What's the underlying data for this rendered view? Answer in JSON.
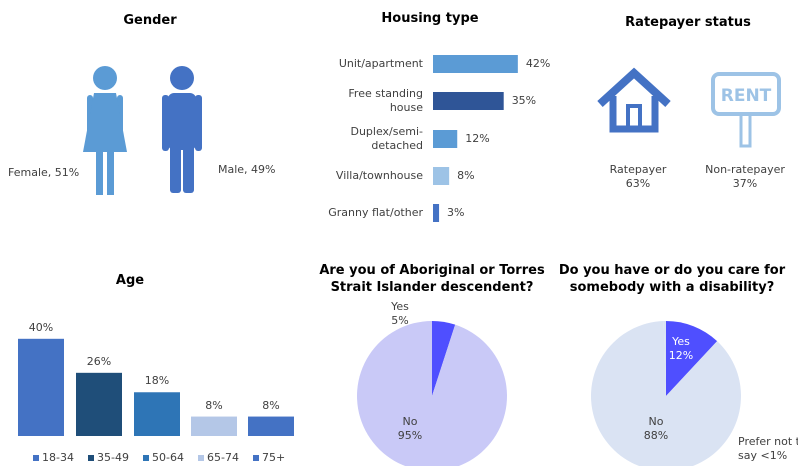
{
  "chart_data": [
    {
      "type": "pictogram",
      "title": "Gender",
      "values": [
        51,
        49
      ],
      "value_labels": [
        "Female, 51%",
        "Male, 49%"
      ],
      "colors": [
        "#5b9bd5",
        "#4472c4"
      ]
    },
    {
      "type": "bar",
      "orientation": "horizontal",
      "title": "Housing type",
      "categories": [
        "Unit/apartment",
        "Free standing house",
        "Duplex/semi-detached",
        "Villa/townhouse",
        "Granny flat/other"
      ],
      "values": [
        42,
        35,
        12,
        8,
        3
      ],
      "value_labels": [
        "42%",
        "35%",
        "12%",
        "8%",
        "3%"
      ],
      "colors": [
        "#5b9bd5",
        "#2f5597",
        "#5b9bd5",
        "#9dc3e6",
        "#4472c4"
      ]
    },
    {
      "type": "pictogram",
      "title": "Ratepayer status",
      "categories": [
        "Ratepayer",
        "Non-ratepayer"
      ],
      "values": [
        63,
        37
      ],
      "value_labels": [
        "63%",
        "37%"
      ],
      "sign_text": "RENT",
      "colors": [
        "#4472c4",
        "#9dc3e6"
      ]
    },
    {
      "type": "bar",
      "orientation": "vertical",
      "title": "Age",
      "categories": [
        "18-34",
        "35-49",
        "50-64",
        "65-74",
        "75+"
      ],
      "values": [
        40,
        26,
        18,
        8,
        8
      ],
      "value_labels": [
        "40%",
        "26%",
        "18%",
        "8%",
        "8%"
      ],
      "colors": [
        "#4472c4",
        "#1f4e79",
        "#2e75b6",
        "#b4c7e7",
        "#4472c4"
      ],
      "legend": "bottom"
    },
    {
      "type": "pie",
      "title": "Are you of Aboriginal or Torres Strait Islander descendent?",
      "categories": [
        "Yes",
        "No"
      ],
      "values": [
        5,
        95
      ],
      "value_labels": [
        "5%",
        "95%"
      ],
      "colors": [
        "#4f4fff",
        "#c9c9f7"
      ]
    },
    {
      "type": "pie",
      "title": "Do you have or do you care for somebody with a disability?",
      "categories": [
        "Yes",
        "No",
        "Prefer not to say"
      ],
      "values": [
        12,
        88,
        0.5
      ],
      "value_labels": [
        "12%",
        "88%",
        "<1%"
      ],
      "colors": [
        "#4f4fff",
        "#dae3f3",
        "#dae3f3"
      ]
    }
  ]
}
